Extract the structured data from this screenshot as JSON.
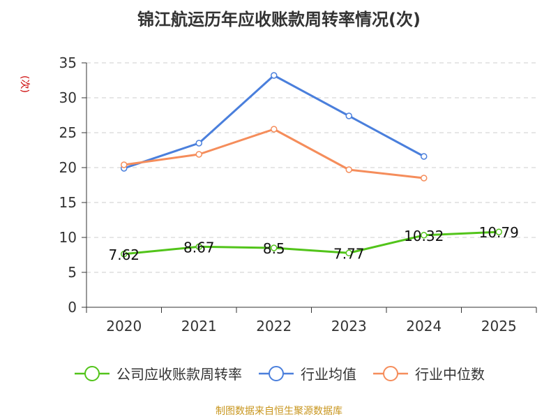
{
  "chart_data": {
    "type": "line",
    "title": "锦江航运历年应收账款周转率情况(次)",
    "ylabel": "(次)",
    "xlabel": "",
    "categories": [
      "2020",
      "2021",
      "2022",
      "2023",
      "2024",
      "2025"
    ],
    "ylim": [
      0,
      35
    ],
    "yticks": [
      0,
      5,
      10,
      15,
      20,
      25,
      30,
      35
    ],
    "grid": true,
    "legend_position": "bottom",
    "series": [
      {
        "name": "公司应收账款周转率",
        "color": "#52c41a",
        "values": [
          7.62,
          8.67,
          8.5,
          7.77,
          10.32,
          10.79
        ],
        "labels": [
          "7.62",
          "8.67",
          "8.5",
          "7.77",
          "10.32",
          "10.79"
        ]
      },
      {
        "name": "行业均值",
        "color": "#4a7fdc",
        "values": [
          19.9,
          23.5,
          33.2,
          27.4,
          21.6,
          null
        ]
      },
      {
        "name": "行业中位数",
        "color": "#f58d5b",
        "values": [
          20.4,
          21.9,
          25.5,
          19.7,
          18.5,
          null
        ]
      }
    ]
  },
  "source": "制图数据来自恒生聚源数据库"
}
